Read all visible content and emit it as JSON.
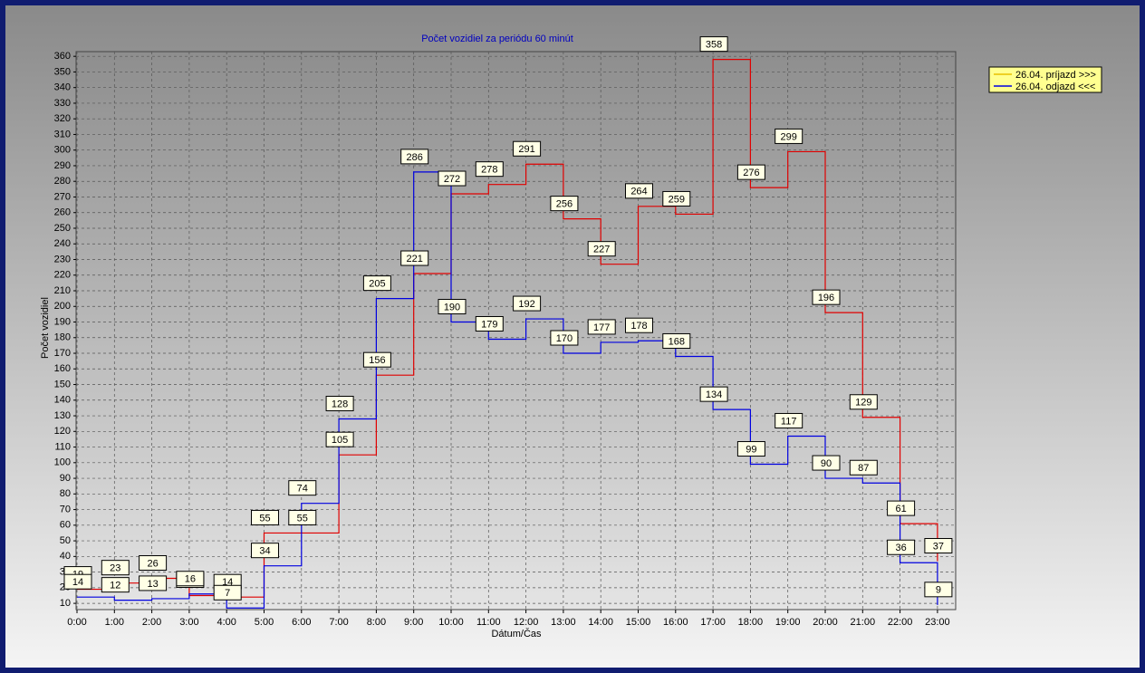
{
  "chart_data": {
    "type": "step-line",
    "title": "Počet vozidiel za periódu 60 minút",
    "x_label": "Dátum/Čas",
    "y_label": "Počet vozidiel",
    "categories": [
      "0:00",
      "1:00",
      "2:00",
      "3:00",
      "4:00",
      "5:00",
      "6:00",
      "7:00",
      "8:00",
      "9:00",
      "10:00",
      "11:00",
      "12:00",
      "13:00",
      "14:00",
      "15:00",
      "16:00",
      "17:00",
      "18:00",
      "19:00",
      "20:00",
      "21:00",
      "22:00",
      "23:00"
    ],
    "ylim": [
      6,
      363
    ],
    "yticks": [
      10,
      20,
      30,
      40,
      50,
      60,
      70,
      80,
      90,
      100,
      110,
      120,
      130,
      140,
      150,
      160,
      170,
      180,
      190,
      200,
      210,
      220,
      230,
      240,
      250,
      260,
      270,
      280,
      290,
      300,
      310,
      320,
      330,
      340,
      350,
      360
    ],
    "grid": true,
    "legend": "right",
    "series": [
      {
        "name": "26.04.  príjazd >>>",
        "color": "#e00000",
        "legend_color": "#e8c000",
        "values": [
          19,
          23,
          26,
          15,
          14,
          55,
          55,
          105,
          156,
          221,
          272,
          278,
          291,
          256,
          227,
          264,
          259,
          358,
          276,
          299,
          196,
          129,
          61,
          37
        ]
      },
      {
        "name": "26.04.  odjazd <<<",
        "color": "#0000e0",
        "legend_color": "#0000e0",
        "values": [
          14,
          12,
          13,
          16,
          7,
          34,
          74,
          128,
          205,
          286,
          190,
          179,
          192,
          170,
          177,
          178,
          168,
          134,
          99,
          117,
          90,
          87,
          36,
          9
        ]
      }
    ]
  }
}
